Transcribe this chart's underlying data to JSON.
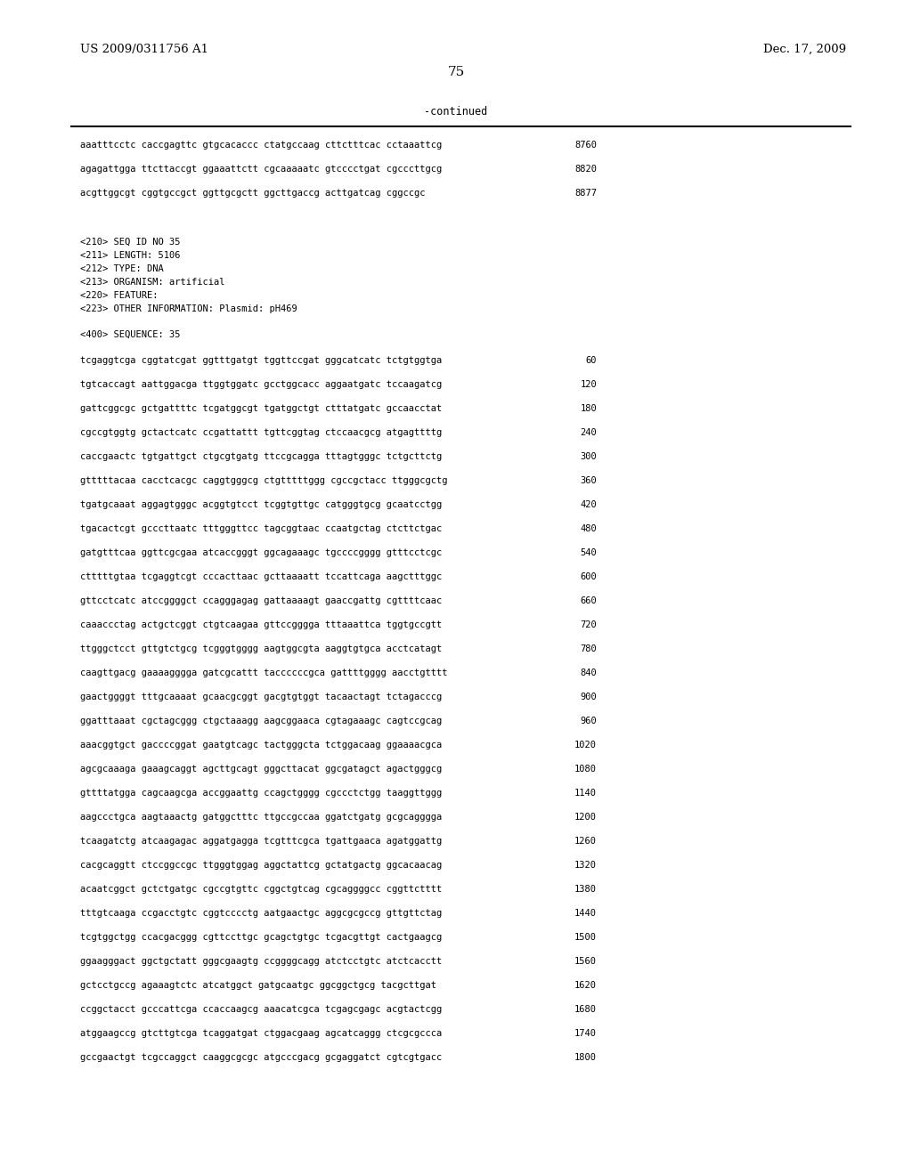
{
  "background_color": "#ffffff",
  "header_left": "US 2009/0311756 A1",
  "header_right": "Dec. 17, 2009",
  "page_number": "75",
  "continued_label": "-continued",
  "font_size_header": 9.5,
  "font_size_body": 7.5,
  "font_size_page": 11,
  "lines": [
    {
      "type": "sequence",
      "text": "aaatttcctc caccgagttc gtgcacaccc ctatgccaag cttctttcac cctaaattcg",
      "num": "8760"
    },
    {
      "type": "sequence",
      "text": "agagattgga ttcttaccgt ggaaattctt cgcaaaaatc gtcccctgat cgcccttgcg",
      "num": "8820"
    },
    {
      "type": "sequence",
      "text": "acgttggcgt cggtgccgct ggttgcgctt ggcttgaccg acttgatcag cggccgc",
      "num": "8877"
    },
    {
      "type": "blank"
    },
    {
      "type": "blank"
    },
    {
      "type": "meta",
      "text": "<210> SEQ ID NO 35"
    },
    {
      "type": "meta",
      "text": "<211> LENGTH: 5106"
    },
    {
      "type": "meta",
      "text": "<212> TYPE: DNA"
    },
    {
      "type": "meta",
      "text": "<213> ORGANISM: artificial"
    },
    {
      "type": "meta",
      "text": "<220> FEATURE:"
    },
    {
      "type": "meta",
      "text": "<223> OTHER INFORMATION: Plasmid: pH469"
    },
    {
      "type": "blank"
    },
    {
      "type": "meta",
      "text": "<400> SEQUENCE: 35"
    },
    {
      "type": "blank"
    },
    {
      "type": "sequence",
      "text": "tcgaggtcga cggtatcgat ggtttgatgt tggttccgat gggcatcatc tctgtggtga",
      "num": "60"
    },
    {
      "type": "sequence",
      "text": "tgtcaccagt aattggacga ttggtggatc gcctggcacc aggaatgatc tccaagatcg",
      "num": "120"
    },
    {
      "type": "sequence",
      "text": "gattcggcgc gctgattttc tcgatggcgt tgatggctgt ctttatgatc gccaacctat",
      "num": "180"
    },
    {
      "type": "sequence",
      "text": "cgccgtggtg gctactcatc ccgattattt tgttcggtag ctccaacgcg atgagttttg",
      "num": "240"
    },
    {
      "type": "sequence",
      "text": "caccgaactc tgtgattgct ctgcgtgatg ttccgcagga tttagtgggc tctgcttctg",
      "num": "300"
    },
    {
      "type": "sequence",
      "text": "gtttttacaa cacctcacgc caggtgggcg ctgtttttggg cgccgctacc ttgggcgctg",
      "num": "360"
    },
    {
      "type": "sequence",
      "text": "tgatgcaaat aggagtgggc acggtgtcct tcggtgttgc catgggtgcg gcaatcctgg",
      "num": "420"
    },
    {
      "type": "sequence",
      "text": "tgacactcgt gcccttaatc tttgggttcc tagcggtaac ccaatgctag ctcttctgac",
      "num": "480"
    },
    {
      "type": "sequence",
      "text": "gatgtttcaa ggttcgcgaa atcaccgggt ggcagaaagc tgccccgggg gtttcctcgc",
      "num": "540"
    },
    {
      "type": "sequence",
      "text": "ctttttgtaa tcgaggtcgt cccacttaac gcttaaaatt tccattcaga aagctttggc",
      "num": "600"
    },
    {
      "type": "sequence",
      "text": "gttcctcatc atccggggct ccagggagag gattaaaagt gaaccgattg cgttttcaac",
      "num": "660"
    },
    {
      "type": "sequence",
      "text": "caaaccctag actgctcggt ctgtcaagaa gttccgggga tttaaattca tggtgccgtt",
      "num": "720"
    },
    {
      "type": "sequence",
      "text": "ttgggctcct gttgtctgcg tcgggtgggg aagtggcgta aaggtgtgca acctcatagt",
      "num": "780"
    },
    {
      "type": "sequence",
      "text": "caagttgacg gaaaagggga gatcgcattt taccccccgca gattttgggg aacctgtttt",
      "num": "840"
    },
    {
      "type": "sequence",
      "text": "gaactggggt tttgcaaaat gcaacgcggt gacgtgtggt tacaactagt tctagacccg",
      "num": "900"
    },
    {
      "type": "sequence",
      "text": "ggatttaaat cgctagcggg ctgctaaagg aagcggaaca cgtagaaagc cagtccgcag",
      "num": "960"
    },
    {
      "type": "sequence",
      "text": "aaacggtgct gaccccggat gaatgtcagc tactgggcta tctggacaag ggaaaacgca",
      "num": "1020"
    },
    {
      "type": "sequence",
      "text": "agcgcaaaga gaaagcaggt agcttgcagt gggcttacat ggcgatagct agactgggcg",
      "num": "1080"
    },
    {
      "type": "sequence",
      "text": "gttttatgga cagcaagcga accggaattg ccagctgggg cgccctctgg taaggttggg",
      "num": "1140"
    },
    {
      "type": "sequence",
      "text": "aagccctgca aagtaaactg gatggctttc ttgccgccaa ggatctgatg gcgcagggga",
      "num": "1200"
    },
    {
      "type": "sequence",
      "text": "tcaagatctg atcaagagac aggatgagga tcgtttcgca tgattgaaca agatggattg",
      "num": "1260"
    },
    {
      "type": "sequence",
      "text": "cacgcaggtt ctccggccgc ttgggtggag aggctattcg gctatgactg ggcacaacag",
      "num": "1320"
    },
    {
      "type": "sequence",
      "text": "acaatcggct gctctgatgc cgccgtgttc cggctgtcag cgcaggggcc cggttctttt",
      "num": "1380"
    },
    {
      "type": "sequence",
      "text": "tttgtcaaga ccgacctgtc cggtcccctg aatgaactgc aggcgcgccg gttgttctag",
      "num": "1440"
    },
    {
      "type": "sequence",
      "text": "tcgtggctgg ccacgacggg cgttccttgc gcagctgtgc tcgacgttgt cactgaagcg",
      "num": "1500"
    },
    {
      "type": "sequence",
      "text": "ggaagggact ggctgctatt gggcgaagtg ccggggcagg atctcctgtc atctcacctt",
      "num": "1560"
    },
    {
      "type": "sequence",
      "text": "gctcctgccg agaaagtctc atcatggct gatgcaatgc ggcggctgcg tacgcttgat",
      "num": "1620"
    },
    {
      "type": "sequence",
      "text": "ccggctacct gcccattcga ccaccaagcg aaacatcgca tcgagcgagc acgtactcgg",
      "num": "1680"
    },
    {
      "type": "sequence",
      "text": "atggaagccg gtcttgtcga tcaggatgat ctggacgaag agcatcaggg ctcgcgccca",
      "num": "1740"
    },
    {
      "type": "sequence",
      "text": "gccgaactgt tcgccaggct caaggcgcgc atgcccgacg gcgaggatct cgtcgtgacc",
      "num": "1800"
    }
  ]
}
